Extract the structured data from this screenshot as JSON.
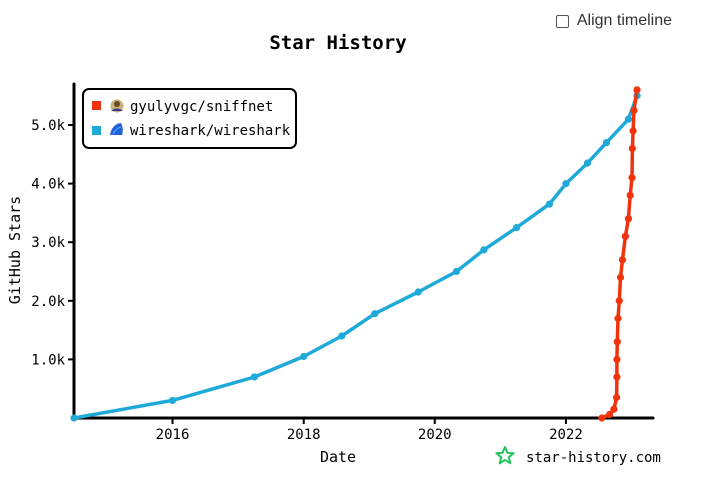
{
  "controls": {
    "align_timeline_label": "Align timeline",
    "align_timeline_checked": false
  },
  "brand": {
    "text": "star-history.com",
    "icon": "star-icon",
    "color": "#22c55e"
  },
  "chart_data": {
    "type": "line",
    "title": "Star History",
    "xlabel": "Date",
    "ylabel": "GitHub Stars",
    "x_type": "date",
    "xlim": [
      "2014-07-01",
      "2023-05-01"
    ],
    "ylim": [
      0,
      5700
    ],
    "x_ticks": [
      "2016-01-01",
      "2018-01-01",
      "2020-01-01",
      "2022-01-01"
    ],
    "x_tick_labels": [
      "2016",
      "2018",
      "2020",
      "2022"
    ],
    "y_ticks": [
      1000,
      2000,
      3000,
      4000,
      5000
    ],
    "y_tick_labels": [
      "1.0k",
      "2.0k",
      "3.0k",
      "4.0k",
      "5.0k"
    ],
    "legend_position": "top-left",
    "series": [
      {
        "name": "gyulyvgc/sniffnet",
        "color": "#f0330d",
        "points": [
          [
            "2022-07-20",
            0
          ],
          [
            "2022-09-01",
            60
          ],
          [
            "2022-09-25",
            150
          ],
          [
            "2022-10-10",
            350
          ],
          [
            "2022-10-12",
            700
          ],
          [
            "2022-10-12",
            1000
          ],
          [
            "2022-10-14",
            1300
          ],
          [
            "2022-10-18",
            1700
          ],
          [
            "2022-10-25",
            2000
          ],
          [
            "2022-11-01",
            2400
          ],
          [
            "2022-11-12",
            2700
          ],
          [
            "2022-11-28",
            3100
          ],
          [
            "2022-12-15",
            3400
          ],
          [
            "2022-12-25",
            3800
          ],
          [
            "2023-01-04",
            4100
          ],
          [
            "2023-01-06",
            4600
          ],
          [
            "2023-01-10",
            4900
          ],
          [
            "2023-01-15",
            5250
          ],
          [
            "2023-02-01",
            5600
          ]
        ]
      },
      {
        "name": "wireshark/wireshark",
        "color": "#1fa9d9",
        "points": [
          [
            "2014-07-01",
            0
          ],
          [
            "2016-01-01",
            300
          ],
          [
            "2017-04-01",
            700
          ],
          [
            "2018-01-01",
            1050
          ],
          [
            "2018-08-01",
            1400
          ],
          [
            "2019-02-01",
            1780
          ],
          [
            "2019-10-01",
            2150
          ],
          [
            "2020-05-01",
            2500
          ],
          [
            "2020-10-01",
            2870
          ],
          [
            "2021-04-01",
            3250
          ],
          [
            "2021-10-01",
            3650
          ],
          [
            "2022-01-01",
            4000
          ],
          [
            "2022-05-01",
            4350
          ],
          [
            "2022-08-15",
            4700
          ],
          [
            "2022-12-15",
            5100
          ],
          [
            "2023-02-01",
            5500
          ]
        ]
      }
    ]
  }
}
